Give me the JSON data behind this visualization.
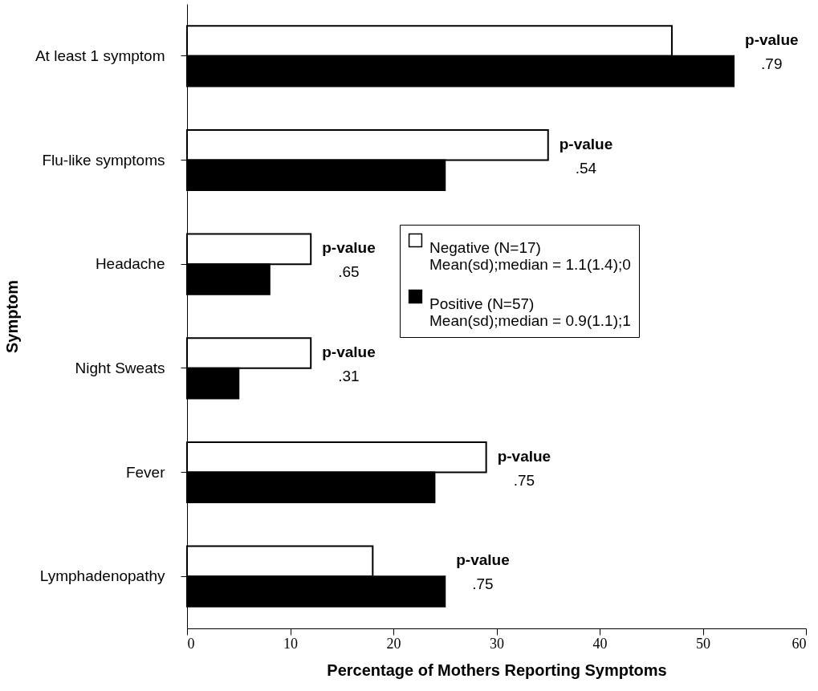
{
  "chart_data": {
    "type": "bar",
    "orientation": "horizontal",
    "xlabel": "Percentage of Mothers Reporting Symptoms",
    "ylabel": "Symptom",
    "categories": [
      "At least 1 symptom",
      "Flu-like symptoms",
      "Headache",
      "Night Sweats",
      "Fever",
      "Lymphadenopathy"
    ],
    "series": [
      {
        "name": "Negative (N=17)\nMean(sd);median = 1.1(1.4);0",
        "color": "#ffffff",
        "values": [
          47,
          35,
          12,
          12,
          29,
          18
        ]
      },
      {
        "name": "Positive (N=57)\nMean(sd);median = 0.9(1.1);1",
        "color": "#000000",
        "values": [
          53,
          25,
          8,
          5,
          24,
          25
        ]
      }
    ],
    "xlim": [
      0,
      60
    ],
    "xticks": [
      0,
      10,
      20,
      30,
      40,
      50,
      60
    ],
    "grid": false,
    "legend": "right",
    "annotations": [
      {
        "text": "p-value",
        "x": 53,
        "y": "At least 1 symptom"
      },
      {
        "text": ".79",
        "x": 53,
        "y": "At least 1 symptom"
      },
      {
        "text": "p-value",
        "x": 35,
        "y": "Flu-like symptoms"
      },
      {
        "text": ".54",
        "x": 35,
        "y": "Flu-like symptoms"
      },
      {
        "text": "p-value",
        "x": 12,
        "y": "Headache"
      },
      {
        "text": ".65",
        "x": 12,
        "y": "Headache"
      },
      {
        "text": "p-value",
        "x": 12,
        "y": "Night Sweats"
      },
      {
        "text": ".31",
        "x": 12,
        "y": "Night Sweats"
      },
      {
        "text": "p-value",
        "x": 29,
        "y": "Fever"
      },
      {
        "text": ".75",
        "x": 29,
        "y": "Fever"
      },
      {
        "text": "p-value",
        "x": 25,
        "y": "Lymphadenopathy"
      },
      {
        "text": ".75",
        "x": 25,
        "y": "Lymphadenopathy"
      }
    ]
  }
}
